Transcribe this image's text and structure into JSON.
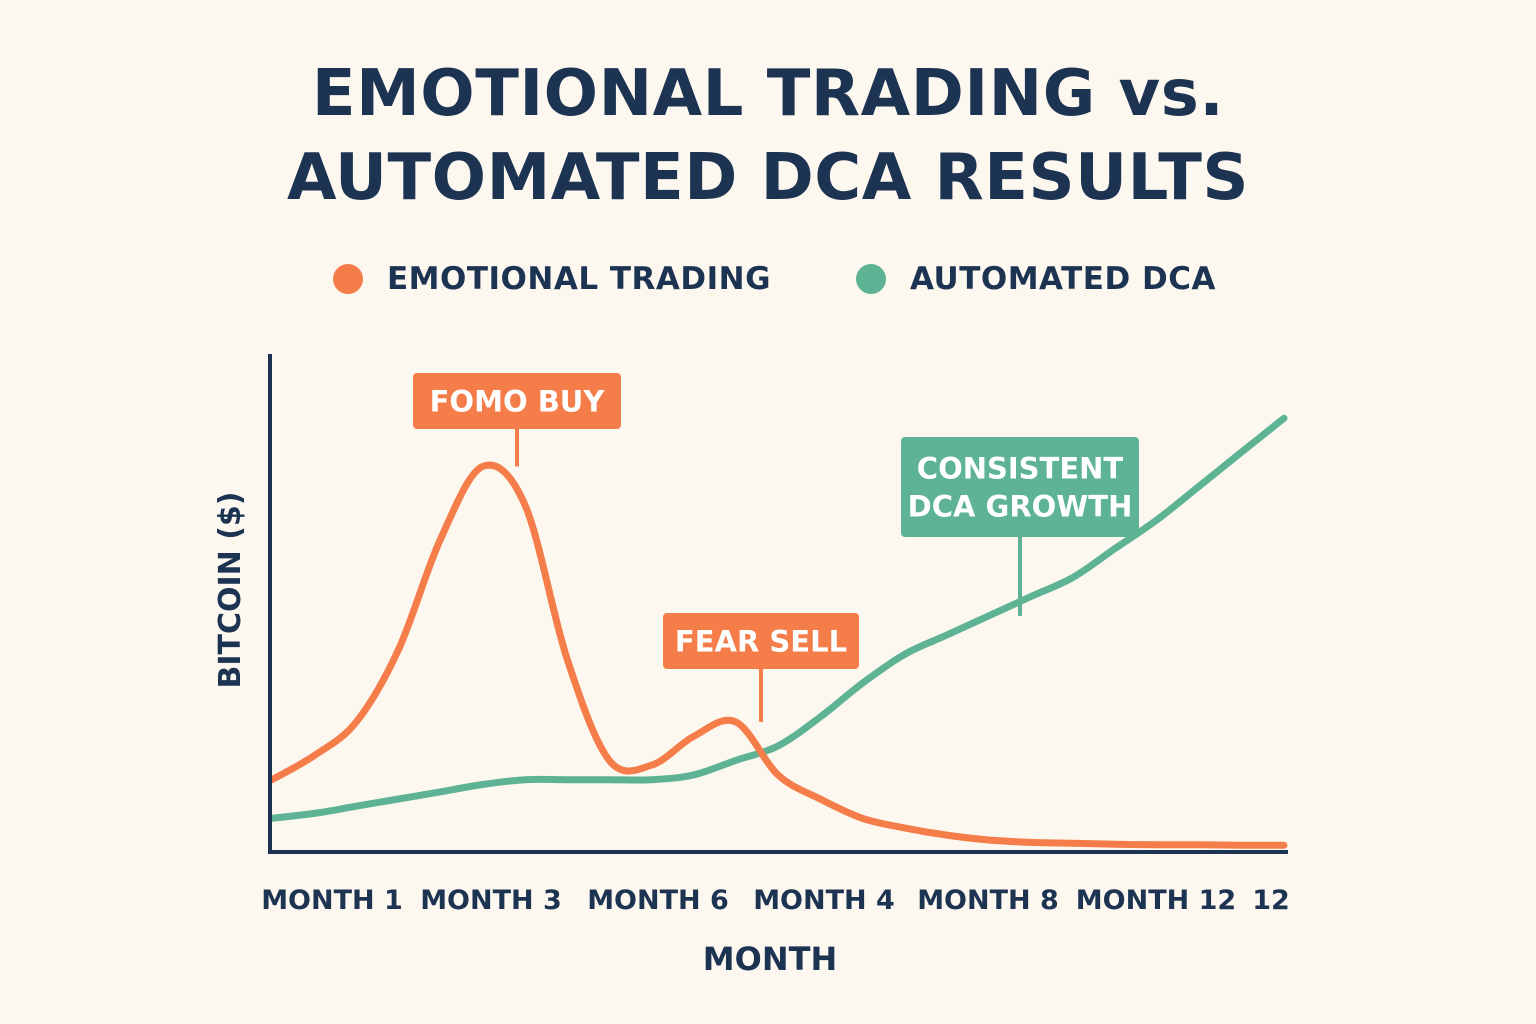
{
  "chart_data": {
    "type": "line",
    "title_lines": [
      "EMOTIONAL TRADING vs.",
      "AUTOMATED DCA RESULTS"
    ],
    "xlabel": "MONTH",
    "ylabel": "BITCOIN ($)",
    "x": [
      0,
      0.5,
      1,
      1.5,
      2,
      2.5,
      3,
      3.5,
      4,
      4.5,
      5,
      5.5,
      6,
      6.5,
      7,
      7.5,
      8,
      8.5,
      9,
      9.5,
      10,
      10.5,
      11,
      11.5,
      12
    ],
    "xtick_labels": [
      "MONTH 1",
      "MONTH 3",
      "MONTH 6",
      "MONTH 4",
      "MONTH 8",
      "MONTH 12",
      "12"
    ],
    "xlim": [
      0,
      12
    ],
    "ylim": [
      0,
      100
    ],
    "grid": false,
    "legend_position": "top",
    "series": [
      {
        "name": "EMOTIONAL TRADING",
        "color": "#f47d4a",
        "values": [
          15,
          20,
          27,
          42,
          65,
          80,
          72,
          40,
          19,
          18,
          24,
          27,
          16,
          11,
          7,
          5,
          3.5,
          2.5,
          2,
          1.8,
          1.6,
          1.5,
          1.5,
          1.4,
          1.4
        ]
      },
      {
        "name": "AUTOMATED DCA",
        "color": "#5db394",
        "values": [
          7,
          8,
          9.5,
          11,
          12.5,
          14,
          15,
          15,
          15,
          15,
          16,
          19,
          22,
          28,
          35,
          41,
          45,
          49,
          53,
          57,
          63,
          69,
          76,
          83,
          90
        ]
      }
    ],
    "annotations": [
      {
        "text": [
          "FOMO BUY"
        ],
        "series": 0,
        "x": 3,
        "value": 80
      },
      {
        "text": [
          "FEAR SELL"
        ],
        "series": 0,
        "x": 5.5,
        "value": 27
      },
      {
        "text": [
          "CONSISTENT",
          "DCA GROWTH"
        ],
        "series": 1,
        "x": 8.8,
        "value": 49
      }
    ]
  },
  "legend": [
    {
      "label": "EMOTIONAL TRADING",
      "color": "#f47d4a"
    },
    {
      "label": "AUTOMATED DCA",
      "color": "#5db394"
    }
  ],
  "colors": {
    "background": "#fdf8ef",
    "text": "#1d3352",
    "axis": "#1d3352"
  }
}
